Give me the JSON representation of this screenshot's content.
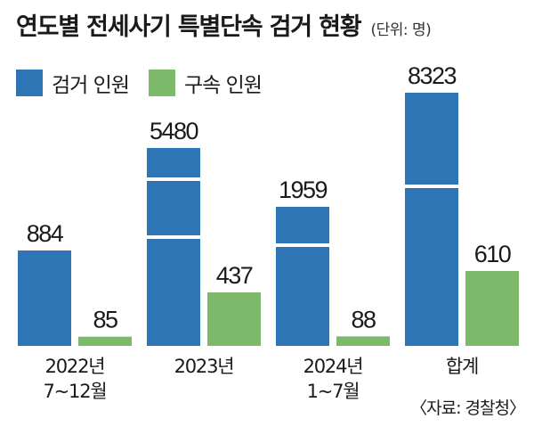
{
  "header": {
    "title": "연도별 전세사기 특별단속 검거 현황",
    "unit": "(단위: 명)"
  },
  "legend": {
    "items": [
      {
        "label": "검거 인원",
        "color": "#2e75b6"
      },
      {
        "label": "구속 인원",
        "color": "#7cb96a"
      }
    ]
  },
  "source": "〈자료: 경찰청〉",
  "chart_data": {
    "type": "bar",
    "categories": [
      [
        "2022년",
        "7~12월"
      ],
      [
        "2023년"
      ],
      [
        "2024년",
        "1~7월"
      ],
      [
        "합계"
      ]
    ],
    "series": [
      {
        "name": "검거 인원",
        "color": "#2e75b6",
        "values": [
          884,
          5480,
          1959,
          8323
        ]
      },
      {
        "name": "구속 인원",
        "color": "#7cb96a",
        "values": [
          85,
          437,
          88,
          610
        ]
      }
    ],
    "axis_breaks": [
      false,
      true,
      true,
      true
    ],
    "title": "연도별 전세사기 특별단속 검거 현황",
    "unit": "(단위: 명)",
    "grid": false
  }
}
